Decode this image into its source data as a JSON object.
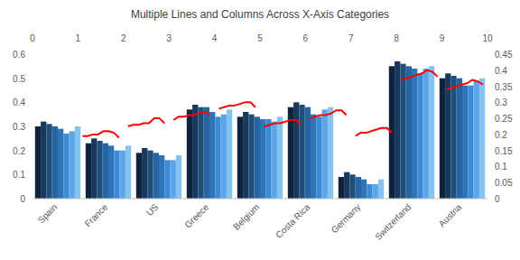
{
  "chart_data": {
    "type": "bar",
    "title": "Multiple Lines and Columns Across X-Axis Categories",
    "categories": [
      "Spain",
      "France",
      "US",
      "Greece",
      "Belgium",
      "Costa Rica",
      "Germany",
      "Switzerland",
      "Austria"
    ],
    "ylim": [
      0,
      0.6
    ],
    "yticks": [
      0,
      0.1,
      0.2,
      0.3,
      0.4,
      0.5,
      0.6
    ],
    "y2lim": [
      0,
      0.45
    ],
    "y2ticks": [
      0,
      0.05,
      0.1,
      0.15,
      0.2,
      0.25,
      0.3,
      0.35,
      0.4,
      0.45
    ],
    "xlim": [
      0,
      10
    ],
    "xticks": [
      0,
      1,
      2,
      3,
      4,
      5,
      6,
      7,
      8,
      9,
      10
    ],
    "grid": false,
    "series": [
      {
        "color": "#10243e",
        "values": [
          0.3,
          0.23,
          0.19,
          0.37,
          0.34,
          0.38,
          0.09,
          0.55,
          0.5
        ]
      },
      {
        "color": "#17375e",
        "values": [
          0.32,
          0.25,
          0.21,
          0.39,
          0.36,
          0.4,
          0.11,
          0.57,
          0.52
        ]
      },
      {
        "color": "#1f4e79",
        "values": [
          0.31,
          0.24,
          0.2,
          0.38,
          0.35,
          0.39,
          0.1,
          0.56,
          0.51
        ]
      },
      {
        "color": "#2565a0",
        "values": [
          0.3,
          0.23,
          0.19,
          0.38,
          0.34,
          0.38,
          0.09,
          0.55,
          0.5
        ]
      },
      {
        "color": "#2e75b6",
        "values": [
          0.29,
          0.22,
          0.18,
          0.36,
          0.33,
          0.35,
          0.08,
          0.54,
          0.47
        ]
      },
      {
        "color": "#3b8ad4",
        "values": [
          0.27,
          0.2,
          0.16,
          0.34,
          0.33,
          0.34,
          0.06,
          0.52,
          0.47
        ]
      },
      {
        "color": "#5aa6e6",
        "values": [
          0.28,
          0.2,
          0.16,
          0.35,
          0.32,
          0.37,
          0.06,
          0.54,
          0.49
        ]
      },
      {
        "color": "#86c3f0",
        "values": [
          0.3,
          0.22,
          0.18,
          0.37,
          0.34,
          0.38,
          0.08,
          0.55,
          0.5
        ]
      },
      {
        "type": "line",
        "axis": "y2",
        "color": "#ff0000",
        "x": [
          1.1,
          1.21,
          1.33,
          1.44,
          1.56,
          1.67,
          1.79,
          1.9
        ],
        "values": [
          0.195,
          0.195,
          0.2,
          0.2,
          0.21,
          0.21,
          0.205,
          0.19
        ]
      },
      {
        "type": "line",
        "axis": "y2",
        "color": "#ff0000",
        "x": [
          2.1,
          2.21,
          2.33,
          2.44,
          2.56,
          2.67,
          2.79,
          2.9
        ],
        "values": [
          0.225,
          0.23,
          0.23,
          0.235,
          0.235,
          0.25,
          0.25,
          0.235
        ]
      },
      {
        "type": "line",
        "axis": "y2",
        "color": "#ff0000",
        "x": [
          3.1,
          3.21,
          3.33,
          3.44,
          3.56,
          3.67,
          3.79,
          3.9
        ],
        "values": [
          0.245,
          0.255,
          0.255,
          0.26,
          0.26,
          0.27,
          0.27,
          0.26
        ]
      },
      {
        "type": "line",
        "axis": "y2",
        "color": "#ff0000",
        "x": [
          4.1,
          4.21,
          4.33,
          4.44,
          4.56,
          4.67,
          4.79,
          4.9
        ],
        "values": [
          0.28,
          0.285,
          0.29,
          0.29,
          0.295,
          0.3,
          0.3,
          0.285
        ]
      },
      {
        "type": "line",
        "axis": "y2",
        "color": "#ff0000",
        "x": [
          5.1,
          5.21,
          5.33,
          5.44,
          5.56,
          5.67,
          5.79,
          5.9
        ],
        "values": [
          0.225,
          0.23,
          0.235,
          0.235,
          0.24,
          0.245,
          0.245,
          0.23
        ]
      },
      {
        "type": "line",
        "axis": "y2",
        "color": "#ff0000",
        "x": [
          6.1,
          6.21,
          6.33,
          6.44,
          6.56,
          6.67,
          6.79,
          6.9
        ],
        "values": [
          0.25,
          0.255,
          0.26,
          0.26,
          0.265,
          0.275,
          0.275,
          0.26
        ]
      },
      {
        "type": "line",
        "axis": "y2",
        "color": "#ff0000",
        "x": [
          7.1,
          7.21,
          7.33,
          7.44,
          7.56,
          7.67,
          7.79,
          7.9
        ],
        "values": [
          0.195,
          0.205,
          0.205,
          0.21,
          0.215,
          0.22,
          0.22,
          0.205
        ]
      },
      {
        "type": "line",
        "axis": "y2",
        "color": "#ff0000",
        "x": [
          8.1,
          8.21,
          8.33,
          8.44,
          8.56,
          8.67,
          8.79,
          8.9
        ],
        "values": [
          0.37,
          0.375,
          0.38,
          0.385,
          0.39,
          0.4,
          0.395,
          0.38
        ]
      },
      {
        "type": "line",
        "axis": "y2",
        "color": "#ff0000",
        "x": [
          9.1,
          9.21,
          9.33,
          9.44,
          9.56,
          9.67,
          9.79,
          9.9
        ],
        "values": [
          0.34,
          0.345,
          0.35,
          0.355,
          0.36,
          0.37,
          0.365,
          0.355
        ]
      }
    ]
  }
}
